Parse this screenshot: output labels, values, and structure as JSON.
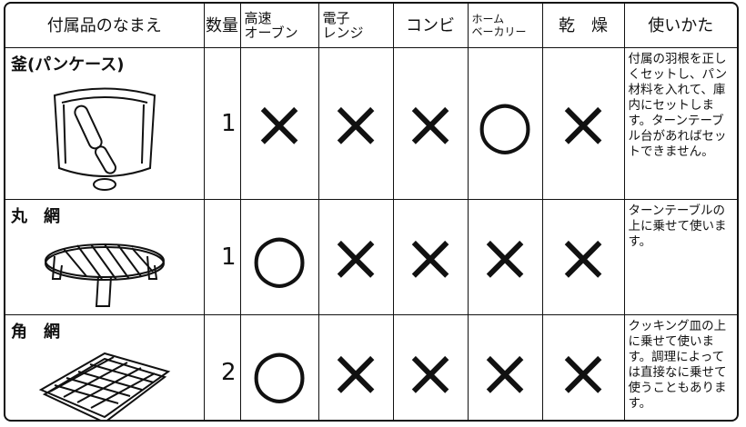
{
  "table": {
    "header": [
      [
        "付属品のなまえ"
      ],
      [
        "数量"
      ],
      [
        "高速",
        "オーブン"
      ],
      [
        "電子",
        "レンジ"
      ],
      [
        "コンビ"
      ],
      [
        "ホーム",
        "ベーカリー"
      ],
      [
        "乾　燥"
      ],
      [
        "使いかた"
      ]
    ],
    "rows": [
      {
        "name": "釜(パンケース)",
        "quantity": 1,
        "marks": [
          "×",
          "×",
          "×",
          "○",
          "×"
        ],
        "usage": "付属の羽根を正しくセットし、パン材料を入れて、庫内にセットします。ターンテーブル台があればセットできません。"
      },
      {
        "name": "丸　網",
        "quantity": 1,
        "marks": [
          "○",
          "×",
          "×",
          "×",
          "×"
        ],
        "usage": "ターンテーブルの上に乗せて使います。"
      },
      {
        "name": "角　網",
        "quantity": 2,
        "marks": [
          "○",
          "×",
          "×",
          "×",
          "×"
        ],
        "usage": "クッキング皿の上に乗せて使います。調理によっては直接なに乗せて使うこともあります。"
      }
    ]
  }
}
